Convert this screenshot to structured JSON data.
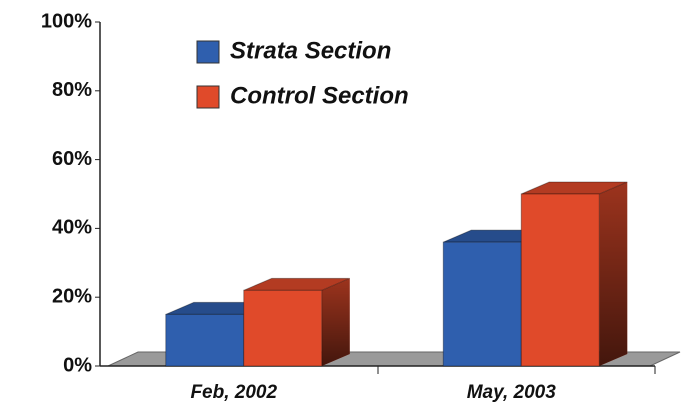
{
  "chart_data": {
    "type": "bar3d",
    "categories": [
      "Feb, 2002",
      "May, 2003"
    ],
    "series": [
      {
        "name": "Strata Section",
        "color": "#2f5fae",
        "values": [
          15,
          36
        ]
      },
      {
        "name": "Control Section",
        "color": "#e04a2a",
        "values": [
          22,
          50
        ]
      }
    ],
    "ylim": [
      0,
      100
    ],
    "yticks": [
      {
        "value": 0,
        "label": "0%"
      },
      {
        "value": 20,
        "label": "20%"
      },
      {
        "value": 40,
        "label": "40%"
      },
      {
        "value": 60,
        "label": "60%"
      },
      {
        "value": 80,
        "label": "80%"
      },
      {
        "value": 100,
        "label": "100%"
      }
    ]
  }
}
